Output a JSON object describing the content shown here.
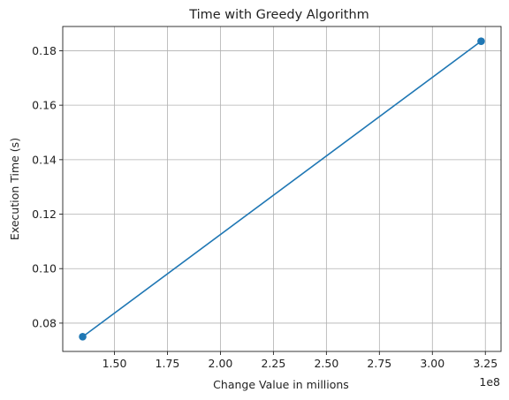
{
  "chart_data": {
    "type": "line",
    "title": "Time with Greedy Algorithm",
    "xlabel": "Change Value in millions",
    "ylabel": "Execution Time (s)",
    "x_offset_label": "1e8",
    "x": [
      1.35,
      3.23
    ],
    "series": [
      {
        "values": [
          0.075,
          0.1835
        ],
        "color": "#1f77b4",
        "marker": "circle"
      }
    ],
    "xlim": [
      1.256,
      3.324
    ],
    "ylim": [
      0.0696,
      0.1889
    ],
    "xticks": [
      1.5,
      1.75,
      2.0,
      2.25,
      2.5,
      2.75,
      3.0,
      3.25
    ],
    "xtick_labels": [
      "1.50",
      "1.75",
      "2.00",
      "2.25",
      "2.50",
      "2.75",
      "3.00",
      "3.25"
    ],
    "yticks": [
      0.08,
      0.1,
      0.12,
      0.14,
      0.16,
      0.18
    ],
    "ytick_labels": [
      "0.08",
      "0.10",
      "0.12",
      "0.14",
      "0.16",
      "0.18"
    ],
    "grid": true,
    "legend": "none"
  }
}
